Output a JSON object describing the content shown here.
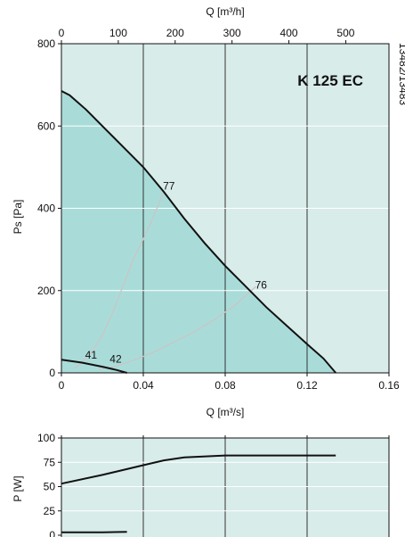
{
  "colors": {
    "plot_background": "#d8ecea",
    "operating_area": "#a9dcd8",
    "curve": "#111111",
    "system_curve": "#c7c7c7"
  },
  "model_label": "K 125 EC",
  "code_label": "13482/13483",
  "chart_data": [
    {
      "type": "line",
      "ylabel": "Ps [Pa]",
      "xlabel": "Q [m³/s]",
      "xlim": [
        0,
        0.16
      ],
      "ylim": [
        0,
        800
      ],
      "x_ticks": [
        0,
        0.04,
        0.08,
        0.12,
        0.16
      ],
      "x_tick_labels": [
        "0",
        "0.04",
        "0.08",
        "0.12",
        "0.16"
      ],
      "y_ticks": [
        0,
        200,
        400,
        600,
        800
      ],
      "y_tick_labels": [
        "0",
        "200",
        "400",
        "600",
        "800"
      ],
      "top_axis": {
        "label": "Q [m³/h]",
        "ticks": [
          0,
          100,
          200,
          300,
          400,
          500
        ],
        "tick_labels": [
          "0",
          "100",
          "200",
          "300",
          "400",
          "500"
        ],
        "factor_per_m3s": 3600
      },
      "grid": true,
      "series": [
        {
          "role": "fan_curve_max",
          "x": [
            0,
            0.004,
            0.012,
            0.022,
            0.032,
            0.04,
            0.05,
            0.06,
            0.07,
            0.08,
            0.09,
            0.1,
            0.11,
            0.12,
            0.128,
            0.134
          ],
          "y": [
            685,
            675,
            640,
            590,
            540,
            500,
            440,
            375,
            315,
            260,
            210,
            160,
            115,
            70,
            35,
            0
          ]
        },
        {
          "role": "fan_curve_min",
          "x": [
            0,
            0.01,
            0.02,
            0.027,
            0.032
          ],
          "y": [
            32,
            25,
            15,
            7,
            0
          ]
        },
        {
          "role": "system_curve",
          "x": [
            0.006,
            0.01,
            0.015,
            0.02,
            0.025,
            0.03,
            0.035,
            0.04,
            0.045,
            0.05
          ],
          "y": [
            10,
            25,
            52,
            92,
            145,
            210,
            275,
            325,
            380,
            440
          ]
        },
        {
          "role": "system_curve",
          "x": [
            0.018,
            0.025,
            0.035,
            0.045,
            0.055,
            0.065,
            0.075,
            0.085,
            0.095
          ],
          "y": [
            8,
            14,
            30,
            50,
            75,
            100,
            130,
            165,
            210
          ]
        }
      ],
      "point_labels": [
        {
          "text": "77",
          "x": 0.0525,
          "y": 445
        },
        {
          "text": "76",
          "x": 0.0975,
          "y": 205
        },
        {
          "text": "41",
          "x": 0.0145,
          "y": 35
        },
        {
          "text": "42",
          "x": 0.0265,
          "y": 25
        }
      ]
    },
    {
      "type": "line",
      "ylabel": "P [W]",
      "xlim": [
        0,
        0.16
      ],
      "ylim": [
        0,
        100
      ],
      "y_ticks": [
        0,
        25,
        50,
        75,
        100
      ],
      "y_tick_labels": [
        "0",
        "25",
        "50",
        "75",
        "100"
      ],
      "grid": true,
      "series": [
        {
          "role": "power_max",
          "x": [
            0,
            0.02,
            0.04,
            0.05,
            0.06,
            0.08,
            0.1,
            0.12,
            0.134
          ],
          "y": [
            53,
            62,
            72,
            77,
            80,
            82,
            82,
            82,
            82
          ]
        },
        {
          "role": "power_min",
          "x": [
            0,
            0.01,
            0.02,
            0.032
          ],
          "y": [
            3,
            3,
            3,
            3.5
          ]
        }
      ]
    }
  ]
}
